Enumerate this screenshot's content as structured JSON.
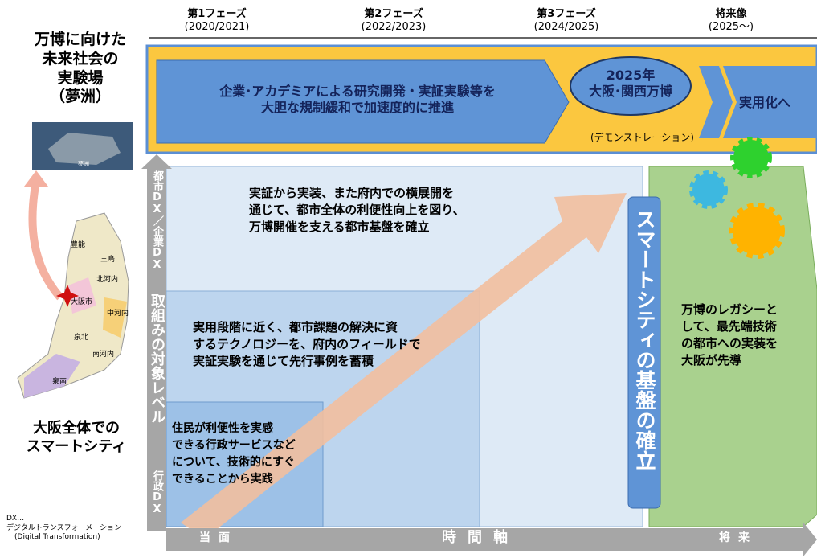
{
  "phases": [
    {
      "name": "第1フェーズ",
      "period": "(2020/2021)"
    },
    {
      "name": "第2フェーズ",
      "period": "(2022/2023)"
    },
    {
      "name": "第3フェーズ",
      "period": "(2024/2025)"
    },
    {
      "name": "将来像",
      "period": "(2025～)"
    }
  ],
  "expo_site": {
    "title": [
      "万博に向けた",
      "未来社会の",
      "実験場",
      "（夢洲）"
    ],
    "photo_label": "夢洲"
  },
  "map": {
    "regions": [
      "豊能",
      "三島",
      "北河内",
      "大阪市",
      "中河内",
      "泉北",
      "南河内",
      "泉南"
    ]
  },
  "osaka_title": [
    "大阪全体での",
    "スマートシティ"
  ],
  "footnote": [
    "DX…",
    "デジタルトランスフォーメーション",
    "(Digital Transformation)"
  ],
  "banner": {
    "text": [
      "企業･アカデミアによる研究開発・実証実験等を",
      "大胆な規制緩和で加速度的に推進"
    ],
    "expo": [
      "2025年",
      "大阪･関西万博"
    ],
    "expo_note": "(デモンストレーション)",
    "practical": "実用化へ"
  },
  "y_axis": {
    "top": "都市DX／企業DX",
    "middle": "取組みの対象レベル",
    "bottom": "行政DX"
  },
  "stages": [
    [
      "実証から実装、また府内での横展開を",
      "通じて、都市全体の利便性向上を図り、",
      "万博開催を支える都市基盤を確立"
    ],
    [
      "実用段階に近く、都市課題の解決に資",
      "するテクノロジーを、府内のフィールドで",
      "実証実験を通じて先行事例を蓄積"
    ],
    [
      "住民が利便性を実感",
      "できる行政サービスなど",
      "について、技術的にすぐ",
      "できることから実践"
    ]
  ],
  "foundation": "スマートシティの基盤の確立",
  "legacy": [
    "万博のレガシーと",
    "して、最先端技術",
    "の都市への実装を",
    "大阪が先導"
  ],
  "x_axis": {
    "start": "当面",
    "label": "時間軸",
    "end": "将来"
  }
}
